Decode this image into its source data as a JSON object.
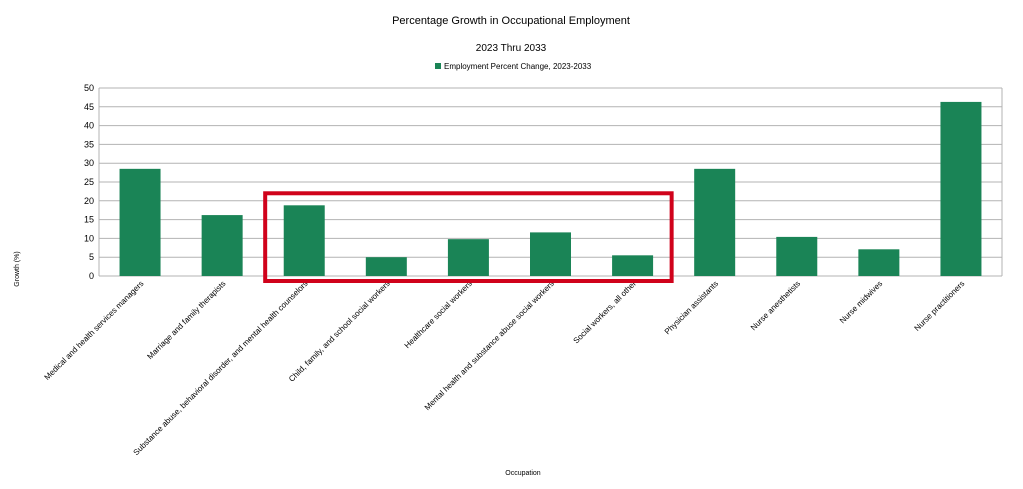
{
  "chart_data": {
    "type": "bar",
    "title": "Percentage Growth in Occupational Employment",
    "subtitle": "2023 Thru 2033",
    "xlabel": "Occupation",
    "ylabel": "Growth (%)",
    "ylim": [
      0,
      50
    ],
    "yticks": [
      "0",
      "5",
      "10",
      "15",
      "20",
      "25",
      "30",
      "35",
      "40",
      "45",
      "50"
    ],
    "grid": true,
    "legend_position": "top-center",
    "series": [
      {
        "name": "Employment Percent Change, 2023-2033",
        "color": "#1a8456",
        "values": [
          28.5,
          16.2,
          18.8,
          5.0,
          9.8,
          11.6,
          5.5,
          28.5,
          10.4,
          7.1,
          46.3
        ]
      }
    ],
    "categories": [
      "Medical and health services managers",
      "Marriage and family therapists",
      "Substance abuse, behavioral disorder, and mental health counselors",
      "Child, family, and school social workers",
      "Healthcare social workers",
      "Mental health and substance abuse social workers",
      "Social workers, all other",
      "Physician assistants",
      "Nurse anesthetists",
      "Nurse midwives",
      "Nurse practitioners"
    ],
    "highlight": {
      "color": "#d0021b",
      "from_category": 2,
      "to_category": 6,
      "ymax": 22
    }
  }
}
